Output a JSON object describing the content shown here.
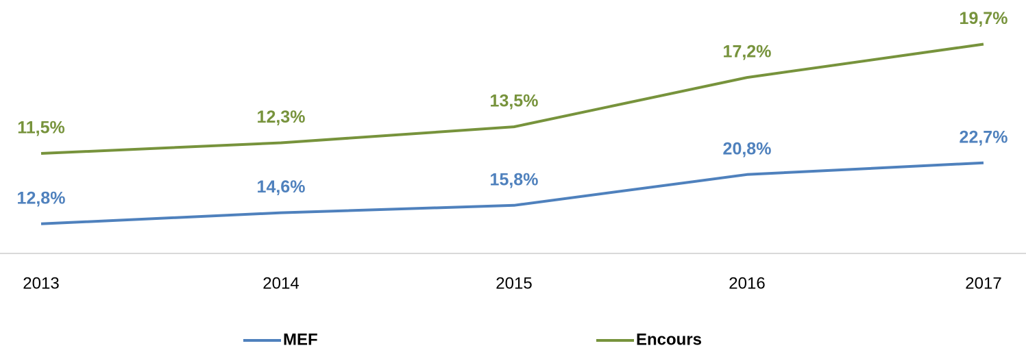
{
  "chart_data": {
    "type": "line",
    "categories": [
      "2013",
      "2014",
      "2015",
      "2016",
      "2017"
    ],
    "series": [
      {
        "name": "MEF",
        "color": "#4f81bd",
        "values": [
          12.8,
          14.6,
          15.8,
          20.8,
          22.7
        ],
        "value_labels": [
          "12,8%",
          "14,6%",
          "15,8%",
          "20,8%",
          "22,7%"
        ]
      },
      {
        "name": "Encours",
        "color": "#77933c",
        "axis": "y2",
        "values": [
          11.5,
          12.3,
          13.5,
          17.2,
          19.7
        ],
        "value_labels": [
          "11,5%",
          "12,3%",
          "13,5%",
          "17,2%",
          "19,7%"
        ]
      }
    ],
    "ylim": [
      8,
      48
    ],
    "y2lim": [
      4,
      22.5
    ],
    "grid": false
  }
}
